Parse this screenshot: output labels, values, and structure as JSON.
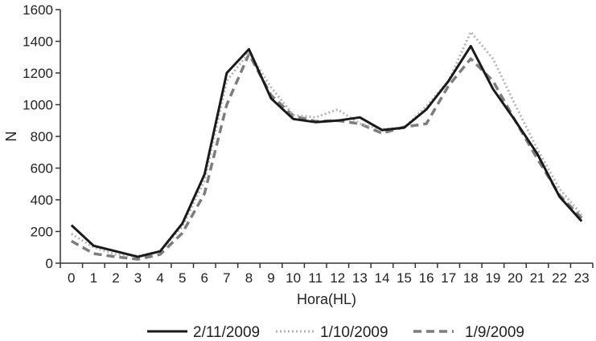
{
  "chart_data": {
    "type": "line",
    "title": "",
    "xlabel": "Hora(HL)",
    "ylabel": "N",
    "x": [
      0,
      1,
      2,
      3,
      4,
      5,
      6,
      7,
      8,
      9,
      10,
      11,
      12,
      13,
      14,
      15,
      16,
      17,
      18,
      19,
      20,
      21,
      22,
      23
    ],
    "x_tick_labels": [
      "0",
      "1",
      "2",
      "3",
      "4",
      "5",
      "6",
      "7",
      "8",
      "9",
      "10",
      "11",
      "12",
      "13",
      "14",
      "15",
      "16",
      "17",
      "18",
      "19",
      "20",
      "21",
      "22",
      "23"
    ],
    "y_ticks": [
      0,
      200,
      400,
      600,
      800,
      1000,
      1200,
      1400,
      1600
    ],
    "y_tick_labels": [
      "0",
      "200",
      "400",
      "600",
      "800",
      "1000",
      "1200",
      "1400",
      "1600"
    ],
    "ylim": [
      0,
      1600
    ],
    "grid": false,
    "legend_position": "bottom",
    "series": [
      {
        "name": "2/11/2009",
        "style": "solid",
        "color": "#1a1a1a",
        "values": [
          240,
          110,
          75,
          40,
          75,
          250,
          560,
          1200,
          1350,
          1040,
          910,
          890,
          900,
          920,
          840,
          855,
          970,
          1150,
          1370,
          1100,
          900,
          690,
          420,
          265
        ]
      },
      {
        "name": "1/10/2009",
        "style": "dotted",
        "color": "#b5b5b5",
        "values": [
          185,
          100,
          55,
          45,
          75,
          230,
          520,
          1150,
          1330,
          1110,
          935,
          920,
          970,
          880,
          845,
          855,
          990,
          1150,
          1460,
          1290,
          1000,
          720,
          470,
          305
        ]
      },
      {
        "name": "1/9/2009",
        "style": "dashed",
        "color": "#7d7d7d",
        "values": [
          140,
          60,
          40,
          25,
          55,
          190,
          440,
          1000,
          1320,
          1060,
          930,
          895,
          900,
          880,
          820,
          860,
          880,
          1120,
          1290,
          1150,
          900,
          660,
          430,
          285
        ]
      }
    ]
  }
}
